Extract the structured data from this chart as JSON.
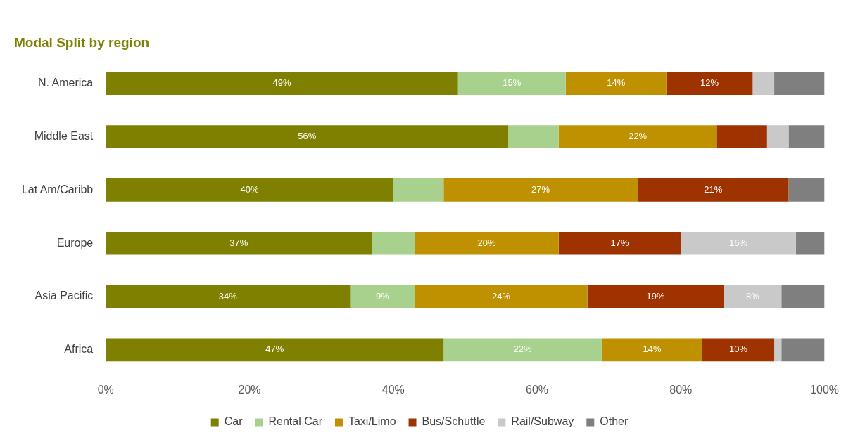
{
  "chart_data": {
    "type": "bar",
    "orientation": "horizontal",
    "stacked": true,
    "title": "Modal Split by region",
    "categories": [
      "N. America",
      "Middle East",
      "Lat Am/Caribb",
      "Europe",
      "Asia Pacific",
      "Africa"
    ],
    "series": [
      {
        "name": "Car",
        "color": "#7f7f00",
        "values": [
          49,
          56,
          40,
          37,
          34,
          47
        ],
        "value_labels": [
          "49%",
          "56%",
          "40%",
          "37%",
          "34%",
          "47%"
        ]
      },
      {
        "name": "Rental Car",
        "color": "#a9d18e",
        "values": [
          15,
          7,
          7,
          6,
          9,
          22
        ],
        "value_labels": [
          "15%",
          null,
          null,
          null,
          "9%",
          "22%"
        ]
      },
      {
        "name": "Taxi/Limo",
        "color": "#bf9000",
        "values": [
          14,
          22,
          27,
          20,
          24,
          14
        ],
        "value_labels": [
          "14%",
          "22%",
          "27%",
          "20%",
          "24%",
          "14%"
        ]
      },
      {
        "name": "Bus/Schuttle",
        "color": "#9e3300",
        "values": [
          12,
          7,
          21,
          17,
          19,
          10
        ],
        "value_labels": [
          "12%",
          null,
          "21%",
          "17%",
          "19%",
          "10%"
        ]
      },
      {
        "name": "Rail/Subway",
        "color": "#c9c9c9",
        "values": [
          3,
          3,
          0,
          16,
          8,
          1
        ],
        "value_labels": [
          null,
          null,
          null,
          "16%",
          "8%",
          null
        ]
      },
      {
        "name": "Other",
        "color": "#7f7f7f",
        "values": [
          7,
          5,
          5,
          4,
          6,
          6
        ],
        "value_labels": [
          null,
          null,
          null,
          null,
          null,
          null
        ]
      }
    ],
    "xlim": [
      0,
      100
    ],
    "xticks": [
      {
        "value": 0,
        "label": "0%"
      },
      {
        "value": 20,
        "label": "20%"
      },
      {
        "value": 40,
        "label": "40%"
      },
      {
        "value": 60,
        "label": "60%"
      },
      {
        "value": 80,
        "label": "80%"
      },
      {
        "value": 100,
        "label": "100%"
      }
    ],
    "grid": false,
    "legend": "bottom"
  }
}
